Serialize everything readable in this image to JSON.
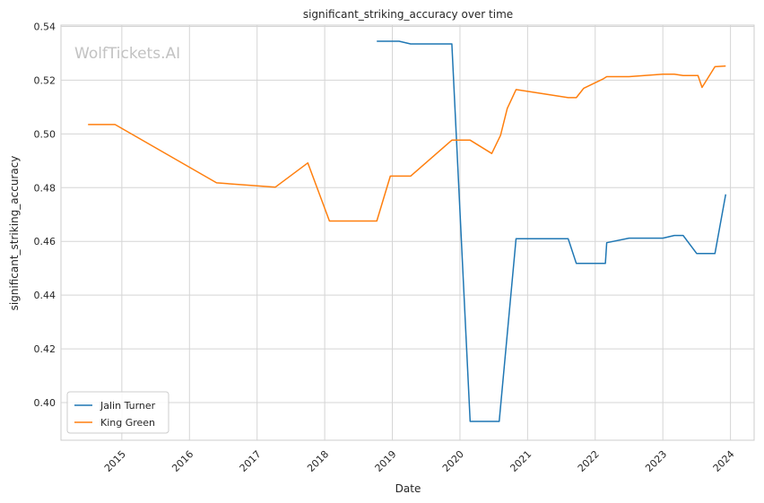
{
  "chart_data": {
    "type": "line",
    "title": "significant_striking_accuracy over time",
    "xlabel": "Date",
    "ylabel": "significant_striking_accuracy",
    "watermark": "WolfTickets.AI",
    "xlim": [
      2014.1,
      2024.35
    ],
    "ylim": [
      0.386,
      0.5405
    ],
    "x_ticks": [
      2015,
      2016,
      2017,
      2018,
      2019,
      2020,
      2021,
      2022,
      2023,
      2024
    ],
    "x_tick_labels": [
      "2015",
      "2016",
      "2017",
      "2018",
      "2019",
      "2020",
      "2021",
      "2022",
      "2023",
      "2024"
    ],
    "y_ticks": [
      0.4,
      0.42,
      0.44,
      0.46,
      0.48,
      0.5,
      0.52,
      0.54
    ],
    "y_tick_labels": [
      "0.40",
      "0.42",
      "0.44",
      "0.46",
      "0.48",
      "0.50",
      "0.52",
      "0.54"
    ],
    "grid": true,
    "legend_position": "lower-left",
    "series": [
      {
        "name": "Jalin Turner",
        "color": "#1f77b4",
        "x": [
          2018.77,
          2019.1,
          2019.27,
          2019.5,
          2019.88,
          2020.15,
          2020.4,
          2020.58,
          2020.83,
          2021.0,
          2021.25,
          2021.6,
          2021.72,
          2021.95,
          2022.15,
          2022.17,
          2022.5,
          2022.75,
          2023.0,
          2023.17,
          2023.3,
          2023.5,
          2023.77,
          2023.93
        ],
        "y": [
          0.5345,
          0.5345,
          0.5335,
          0.5335,
          0.5335,
          0.393,
          0.393,
          0.393,
          0.461,
          0.461,
          0.461,
          0.461,
          0.4518,
          0.4518,
          0.4518,
          0.4595,
          0.4612,
          0.4612,
          0.4612,
          0.4622,
          0.4622,
          0.4555,
          0.4555,
          0.4775
        ]
      },
      {
        "name": "King Green",
        "color": "#ff7f0e",
        "x": [
          2014.5,
          2014.9,
          2016.4,
          2017.27,
          2017.75,
          2018.07,
          2018.77,
          2018.97,
          2019.27,
          2019.88,
          2020.15,
          2020.47,
          2020.6,
          2020.7,
          2020.83,
          2021.6,
          2021.72,
          2021.83,
          2022.12,
          2022.17,
          2022.5,
          2023.0,
          2023.17,
          2023.3,
          2023.52,
          2023.58,
          2023.77,
          2023.93
        ],
        "y": [
          0.5035,
          0.5035,
          0.4818,
          0.4802,
          0.4892,
          0.4676,
          0.4676,
          0.4843,
          0.4843,
          0.4977,
          0.4977,
          0.4927,
          0.4995,
          0.5095,
          0.5165,
          0.5135,
          0.5135,
          0.517,
          0.5205,
          0.5213,
          0.5213,
          0.5222,
          0.5222,
          0.5217,
          0.5217,
          0.5173,
          0.525,
          0.5253
        ]
      }
    ]
  }
}
